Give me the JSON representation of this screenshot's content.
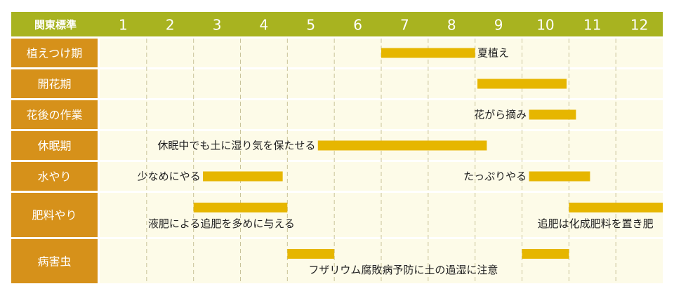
{
  "chart_data": {
    "type": "gantt",
    "region_label": "関東標準",
    "months": [
      "1",
      "2",
      "3",
      "4",
      "5",
      "6",
      "7",
      "8",
      "9",
      "10",
      "11",
      "12"
    ],
    "colors": {
      "header_bg": "#a8b320",
      "header_text": "#ffffff",
      "month_text": "#ffffff",
      "label_bg": "#d6911a",
      "label_text": "#ffffff",
      "row_bg": "#fdfbe8",
      "bar": "#e6b600",
      "grid": "#c9c39a",
      "annotation": "#222222"
    },
    "rows": [
      {
        "label": "植えつけ期",
        "bars": [
          {
            "start": 7.0,
            "end": 9.0
          }
        ],
        "notes": [
          {
            "text": "夏植え",
            "at": 9.05,
            "align": "start",
            "line": "mid"
          }
        ]
      },
      {
        "label": "開花期",
        "bars": [
          {
            "start": 9.05,
            "end": 10.95
          }
        ],
        "notes": []
      },
      {
        "label": "花後の作業",
        "bars": [
          {
            "start": 10.15,
            "end": 11.15
          }
        ],
        "notes": [
          {
            "text": "花がら摘み",
            "at": 10.1,
            "align": "end",
            "line": "mid"
          }
        ]
      },
      {
        "label": "休眠期",
        "bars": [
          {
            "start": 5.65,
            "end": 9.25
          }
        ],
        "notes": [
          {
            "text": "休眠中でも土に湿り気を保たせる",
            "at": 5.6,
            "align": "end",
            "line": "mid"
          }
        ]
      },
      {
        "label": "水やり",
        "bars": [
          {
            "start": 3.2,
            "end": 4.9
          },
          {
            "start": 10.15,
            "end": 11.45
          }
        ],
        "notes": [
          {
            "text": "少なめにやる",
            "at": 3.15,
            "align": "end",
            "line": "mid"
          },
          {
            "text": "たっぷりやる",
            "at": 10.1,
            "align": "end",
            "line": "mid"
          }
        ]
      },
      {
        "label": "肥料やり",
        "bars": [
          {
            "start": 3.0,
            "end": 5.0
          },
          {
            "start": 11.0,
            "end": 13.0
          }
        ],
        "notes": [
          {
            "text": "液肥による追肥を多めに与える",
            "at": 2.03,
            "align": "start",
            "line": "low"
          },
          {
            "text": "追肥は化成肥料を置き肥",
            "at": 12.8,
            "align": "end",
            "line": "low"
          }
        ]
      },
      {
        "label": "病害虫",
        "bars": [
          {
            "start": 5.0,
            "end": 6.0
          },
          {
            "start": 10.0,
            "end": 11.0
          }
        ],
        "notes": [
          {
            "text": "フザリウム腐敗病予防に土の過湿に注意",
            "at": 5.45,
            "align": "start",
            "line": "low"
          }
        ]
      }
    ]
  }
}
